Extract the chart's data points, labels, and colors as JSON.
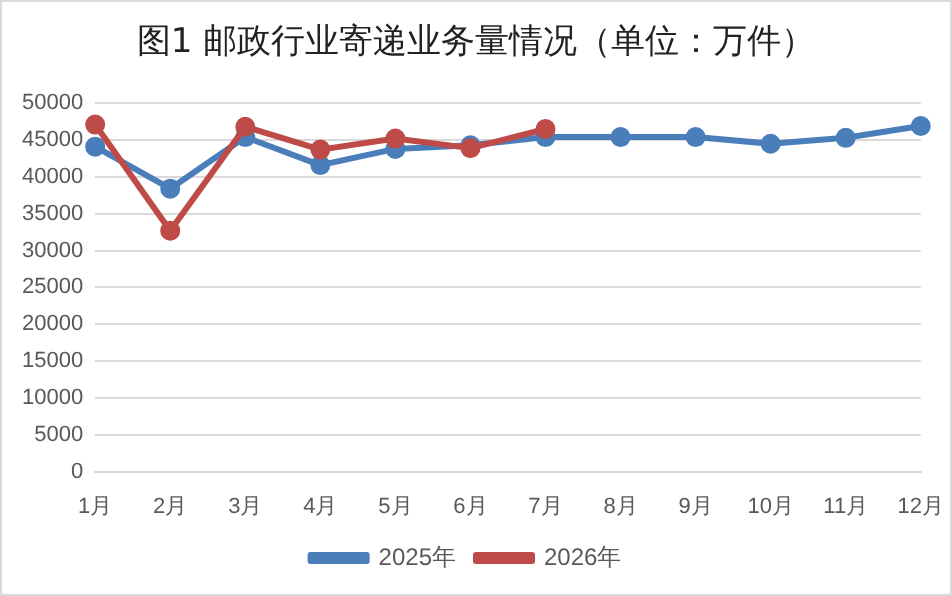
{
  "chart_data": {
    "type": "line",
    "title": "图1 邮政行业寄递业务量情况（单位：万件）",
    "categories": [
      "1月",
      "2月",
      "3月",
      "4月",
      "5月",
      "6月",
      "7月",
      "8月",
      "9月",
      "10月",
      "11月",
      "12月"
    ],
    "series": [
      {
        "name": "2025年",
        "color": "#4a7ebb",
        "values": [
          44100,
          38400,
          45400,
          41600,
          43800,
          44300,
          45400,
          45400,
          45400,
          44500,
          45300,
          46900
        ]
      },
      {
        "name": "2026年",
        "color": "#be4b48",
        "values": [
          47100,
          32700,
          46800,
          43700,
          45200,
          43900,
          46500,
          null,
          null,
          null,
          null,
          null
        ]
      }
    ],
    "ylim": [
      0,
      50000
    ],
    "yticks": [
      0,
      5000,
      10000,
      15000,
      20000,
      25000,
      30000,
      35000,
      40000,
      45000,
      50000
    ],
    "grid": "y",
    "legend": "bottom",
    "marker": "circle",
    "line_style": "solid"
  }
}
